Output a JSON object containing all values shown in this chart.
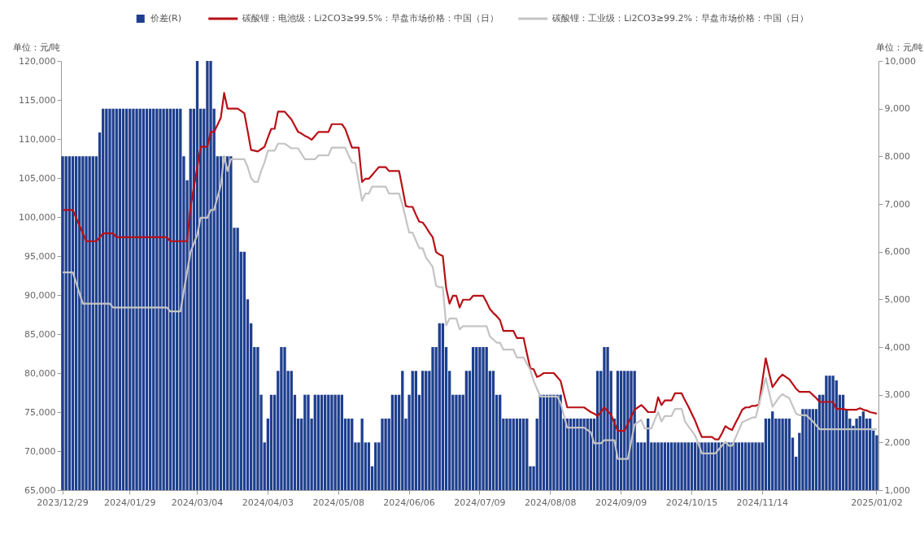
{
  "chart_data": {
    "type": "bar",
    "legend": "top",
    "ylabel": "单位：元/吨",
    "y2label": "单位：元/吨",
    "ylim": [
      65000,
      120000
    ],
    "yticks": [
      {
        "value": 65000,
        "label": "65,000"
      },
      {
        "value": 70000,
        "label": "70,000"
      },
      {
        "value": 75000,
        "label": "75,000"
      },
      {
        "value": 80000,
        "label": "80,000"
      },
      {
        "value": 85000,
        "label": "85,000"
      },
      {
        "value": 90000,
        "label": "90,000"
      },
      {
        "value": 95000,
        "label": "95,000"
      },
      {
        "value": 100000,
        "label": "100,000"
      },
      {
        "value": 105000,
        "label": "105,000"
      },
      {
        "value": 110000,
        "label": "110,000"
      },
      {
        "value": 115000,
        "label": "115,000"
      },
      {
        "value": 120000,
        "label": "120,000"
      }
    ],
    "y2lim": [
      1000,
      10000
    ],
    "y2ticks": [
      {
        "value": 1000,
        "label": "1,000"
      },
      {
        "value": 2000,
        "label": "2,000"
      },
      {
        "value": 3000,
        "label": "3,000"
      },
      {
        "value": 4000,
        "label": "4,000"
      },
      {
        "value": 5000,
        "label": "5,000"
      },
      {
        "value": 6000,
        "label": "6,000"
      },
      {
        "value": 7000,
        "label": "7,000"
      },
      {
        "value": 8000,
        "label": "8,000"
      },
      {
        "value": 9000,
        "label": "9,000"
      },
      {
        "value": 10000,
        "label": "10,000"
      }
    ],
    "categories": [
      "2023/12/29",
      null,
      null,
      null,
      null,
      null,
      null,
      null,
      null,
      null,
      null,
      null,
      null,
      null,
      null,
      null,
      null,
      null,
      null,
      null,
      "2024/01/29",
      null,
      null,
      null,
      null,
      null,
      null,
      null,
      null,
      null,
      null,
      null,
      null,
      null,
      null,
      null,
      null,
      null,
      null,
      null,
      "2024/03/04",
      null,
      null,
      null,
      null,
      null,
      null,
      null,
      null,
      null,
      null,
      null,
      null,
      null,
      null,
      null,
      null,
      null,
      null,
      null,
      null,
      "2024/04/03",
      null,
      null,
      null,
      null,
      null,
      null,
      null,
      null,
      null,
      null,
      null,
      null,
      null,
      null,
      null,
      null,
      null,
      null,
      null,
      null,
      "2024/05/08",
      null,
      null,
      null,
      null,
      null,
      null,
      null,
      null,
      null,
      null,
      null,
      null,
      null,
      null,
      null,
      null,
      null,
      null,
      null,
      null,
      "2024/06/06",
      null,
      null,
      null,
      null,
      null,
      null,
      null,
      null,
      null,
      null,
      null,
      null,
      null,
      null,
      null,
      null,
      null,
      null,
      null,
      null,
      "2024/07/09",
      null,
      null,
      null,
      null,
      null,
      null,
      null,
      null,
      null,
      null,
      null,
      null,
      null,
      null,
      null,
      null,
      null,
      null,
      null,
      null,
      "2024/08/08",
      null,
      null,
      null,
      null,
      null,
      null,
      null,
      null,
      null,
      null,
      null,
      null,
      null,
      null,
      null,
      null,
      null,
      null,
      null,
      null,
      "2024/09/09",
      null,
      null,
      null,
      null,
      null,
      null,
      null,
      null,
      null,
      null,
      null,
      null,
      null,
      null,
      null,
      null,
      null,
      null,
      null,
      null,
      "2024/10/15",
      null,
      null,
      null,
      null,
      null,
      null,
      null,
      null,
      null,
      null,
      null,
      null,
      null,
      null,
      null,
      null,
      null,
      null,
      null,
      null,
      "2024/11/14",
      null,
      null,
      null,
      null,
      null,
      null,
      null,
      null,
      null,
      null,
      null,
      null,
      null,
      null,
      null,
      null,
      null,
      null,
      null,
      null,
      null,
      null,
      null,
      null,
      null,
      null,
      null,
      null,
      null,
      null,
      null,
      null,
      null,
      "2025/01/02"
    ],
    "series": [
      {
        "name": "价差(R)",
        "type": "bar",
        "axis": "y2",
        "color": "#1e3f8e",
        "values": [
          8000,
          8000,
          8000,
          8000,
          8000,
          8000,
          8000,
          8000,
          8000,
          8000,
          8000,
          8500,
          9000,
          9000,
          9000,
          9000,
          9000,
          9000,
          9000,
          9000,
          9000,
          9000,
          9000,
          9000,
          9000,
          9000,
          9000,
          9000,
          9000,
          9000,
          9000,
          9000,
          9000,
          9000,
          9000,
          9000,
          8000,
          7500,
          9000,
          9000,
          10000,
          9000,
          9000,
          10000,
          10000,
          9000,
          8000,
          8000,
          8000,
          8000,
          8000,
          6500,
          6500,
          6000,
          6000,
          5000,
          4500,
          4000,
          4000,
          3000,
          2000,
          2500,
          3000,
          3000,
          3500,
          4000,
          4000,
          3500,
          3500,
          3000,
          2500,
          2500,
          3000,
          3000,
          2500,
          3000,
          3000,
          3000,
          3000,
          3000,
          3000,
          3000,
          3000,
          3000,
          2500,
          2500,
          2500,
          2000,
          2000,
          2500,
          2000,
          2000,
          1500,
          2000,
          2000,
          2500,
          2500,
          2500,
          3000,
          3000,
          3000,
          3500,
          2500,
          3000,
          3500,
          3500,
          3000,
          3500,
          3500,
          3500,
          4000,
          4000,
          4500,
          4500,
          4000,
          3500,
          3000,
          3000,
          3000,
          3000,
          3500,
          3500,
          4000,
          4000,
          4000,
          4000,
          4000,
          3500,
          3500,
          3000,
          3000,
          2500,
          2500,
          2500,
          2500,
          2500,
          2500,
          2500,
          2500,
          1500,
          1500,
          2500,
          3000,
          3000,
          3000,
          3000,
          3000,
          3000,
          3000,
          2500,
          2500,
          2500,
          2500,
          2500,
          2500,
          2500,
          2500,
          2500,
          2500,
          3500,
          3500,
          4000,
          4000,
          3500,
          2500,
          3500,
          3500,
          3500,
          3500,
          3500,
          3500,
          2000,
          2000,
          2000,
          2500,
          2000,
          2000,
          2000,
          2000,
          2000,
          2000,
          2000,
          2000,
          2000,
          2000,
          2000,
          2000,
          2000,
          2000,
          2000,
          2000,
          2000,
          2000,
          2000,
          2000,
          2000,
          2000,
          2000,
          2000,
          2000,
          2000,
          2000,
          2000,
          2000,
          2000,
          2000,
          2000,
          2000,
          2000,
          2500,
          2500,
          2650,
          2500,
          2500,
          2500,
          2500,
          2500,
          2100,
          1700,
          2200,
          2700,
          2700,
          2700,
          2700,
          2700,
          3000,
          3000,
          3400,
          3400,
          3400,
          3300,
          3000,
          3000,
          2700,
          2500,
          2350,
          2500,
          2550,
          2650,
          2500,
          2500,
          2250,
          2150
        ]
      },
      {
        "name": "碳酸锂：电池级：Li2CO3≥99.5%：早盘市场价格：中国（日）",
        "type": "line",
        "color": "#b80f16",
        "values": [
          100900,
          100900,
          100900,
          100900,
          99900,
          98900,
          97900,
          96900,
          96900,
          96900,
          96900,
          97400,
          97900,
          97900,
          97900,
          97900,
          97400,
          97400,
          97400,
          97400,
          97400,
          97400,
          97400,
          97400,
          97400,
          97400,
          97400,
          97400,
          97400,
          97400,
          97400,
          97400,
          96900,
          96900,
          96900,
          96900,
          96900,
          96900,
          101300,
          103800,
          106300,
          109000,
          109000,
          109000,
          110900,
          110900,
          111800,
          112700,
          115900,
          113900,
          113900,
          113900,
          113900,
          113600,
          113300,
          111000,
          108600,
          108500,
          108400,
          108700,
          109000,
          110200,
          111300,
          111300,
          113500,
          113500,
          113500,
          113000,
          112500,
          111700,
          110900,
          110700,
          110400,
          110200,
          109900,
          110400,
          110900,
          110900,
          110900,
          110900,
          111900,
          111900,
          111900,
          111900,
          111300,
          110100,
          108900,
          108900,
          108900,
          104500,
          104900,
          104900,
          105400,
          105900,
          106400,
          106400,
          106400,
          105900,
          105900,
          105900,
          105900,
          103700,
          101400,
          101300,
          101300,
          100300,
          99400,
          99300,
          98700,
          98000,
          97400,
          95500,
          95200,
          95000,
          90900,
          88900,
          89900,
          89900,
          88400,
          89400,
          89400,
          89400,
          89900,
          89900,
          89900,
          89900,
          89100,
          88200,
          87700,
          87300,
          86800,
          85400,
          85400,
          85400,
          85400,
          84500,
          84500,
          84500,
          82500,
          80600,
          80500,
          79500,
          79700,
          80000,
          80000,
          80000,
          80000,
          79500,
          79000,
          77300,
          75600,
          75600,
          75600,
          75600,
          75600,
          75600,
          75300,
          75000,
          74800,
          74500,
          75000,
          75600,
          75100,
          74700,
          73600,
          72600,
          72600,
          72600,
          73500,
          74400,
          75300,
          75600,
          75900,
          75500,
          75000,
          75000,
          75000,
          76900,
          75900,
          76500,
          76500,
          76500,
          77400,
          77400,
          77400,
          76500,
          75700,
          74800,
          73900,
          72800,
          71800,
          71800,
          71800,
          71800,
          71500,
          71500,
          72300,
          73200,
          72900,
          72700,
          73600,
          74400,
          75300,
          75600,
          75600,
          75800,
          75800,
          76000,
          79000,
          81900,
          80000,
          78200,
          78800,
          79400,
          79800,
          79500,
          79200,
          78600,
          78000,
          77600,
          77600,
          77600,
          77600,
          77200,
          76800,
          76300,
          76300,
          76300,
          76300,
          76300,
          75400,
          75400,
          75400,
          75300,
          75300,
          75300,
          75300,
          75500,
          75300,
          75200,
          75000,
          74900,
          74800
        ]
      },
      {
        "name": "碳酸锂：工业级：Li2CO3≥99.2%：早盘市场价格：中国（日）",
        "type": "line",
        "color": "#c4c4c4",
        "values": [
          92900,
          92900,
          92900,
          92900,
          91600,
          90200,
          88900,
          88900,
          88900,
          88900,
          88900,
          88900,
          88900,
          88900,
          88900,
          88400,
          88400,
          88400,
          88400,
          88400,
          88400,
          88400,
          88400,
          88400,
          88400,
          88400,
          88400,
          88400,
          88400,
          88400,
          88400,
          88400,
          87900,
          87900,
          87900,
          87900,
          90500,
          93000,
          95500,
          96600,
          97700,
          99900,
          99900,
          99900,
          100900,
          100900,
          102500,
          104100,
          107800,
          105900,
          107400,
          107400,
          107400,
          107400,
          107400,
          106400,
          105000,
          104500,
          104500,
          105900,
          107000,
          108500,
          108500,
          108500,
          109400,
          109400,
          109400,
          109100,
          108800,
          108800,
          108800,
          108100,
          107400,
          107400,
          107400,
          107400,
          107900,
          107900,
          107900,
          107900,
          108900,
          108900,
          108900,
          108900,
          108900,
          107900,
          107000,
          106900,
          104500,
          102100,
          103000,
          103000,
          103900,
          103900,
          103900,
          103900,
          103900,
          103000,
          103000,
          103000,
          103000,
          101600,
          99800,
          98000,
          98000,
          97000,
          96000,
          96000,
          94800,
          94200,
          93600,
          91200,
          91000,
          91000,
          86100,
          87000,
          87000,
          87000,
          85600,
          86000,
          86000,
          86000,
          86000,
          86000,
          86000,
          86000,
          86000,
          84700,
          84300,
          83900,
          83900,
          83000,
          83000,
          83000,
          83000,
          82000,
          82000,
          82000,
          81200,
          80400,
          79000,
          78000,
          77000,
          77000,
          77000,
          77000,
          77000,
          77000,
          76200,
          74600,
          73000,
          73000,
          73000,
          73000,
          73000,
          73000,
          72700,
          72400,
          71000,
          71000,
          71000,
          71400,
          71400,
          71400,
          71400,
          69000,
          69000,
          69000,
          69000,
          71200,
          73400,
          73700,
          74000,
          72900,
          72900,
          72900,
          74000,
          75000,
          73800,
          74500,
          74500,
          74500,
          75400,
          75400,
          75400,
          73800,
          73200,
          72600,
          72000,
          70900,
          69700,
          69700,
          69700,
          69700,
          69700,
          70200,
          70700,
          71200,
          70700,
          70700,
          71700,
          72700,
          73700,
          73900,
          74100,
          74300,
          74300,
          76000,
          77700,
          79400,
          77500,
          75700,
          76300,
          76900,
          77300,
          77000,
          76800,
          75800,
          74800,
          74600,
          74600,
          74600,
          74200,
          73800,
          73300,
          72800,
          72800,
          72800,
          72800,
          72800,
          72800,
          72800,
          72800,
          72800,
          72800,
          72800,
          72800,
          72800,
          72800,
          72800,
          72800,
          72800,
          72800
        ]
      }
    ]
  }
}
